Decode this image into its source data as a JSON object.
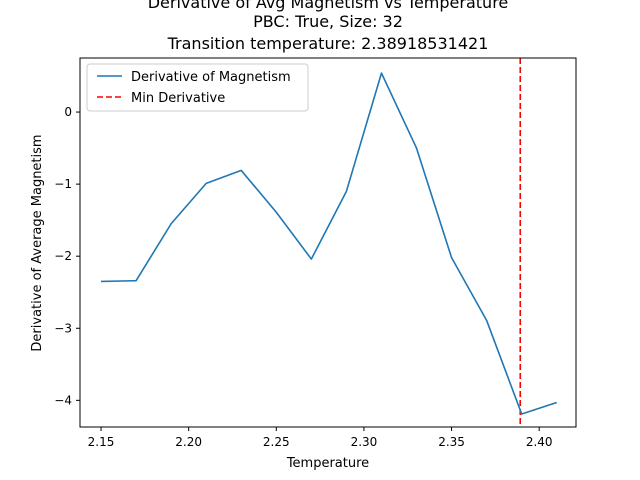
{
  "chart_data": {
    "type": "line",
    "title_lines": [
      "Derivative of Avg Magnetism vs Temperature",
      "PBC: True, Size: 32",
      "Transition temperature: 2.38918531421"
    ],
    "xlabel": "Temperature",
    "ylabel": "Derivative of Average Magnetism",
    "xlim": [
      2.138,
      2.421
    ],
    "ylim": [
      -4.37,
      0.75
    ],
    "xticks": [
      2.15,
      2.2,
      2.25,
      2.3,
      2.35,
      2.4
    ],
    "xtick_labels": [
      "2.15",
      "2.20",
      "2.25",
      "2.30",
      "2.35",
      "2.40"
    ],
    "yticks": [
      0,
      -1,
      -2,
      -3,
      -4
    ],
    "ytick_labels": [
      "0",
      "−1",
      "−2",
      "−3",
      "−4"
    ],
    "grid": false,
    "legend_position": "upper-left",
    "series": [
      {
        "name": "Derivative of Magnetism",
        "color": "#1f77b4",
        "style": "solid",
        "x": [
          2.15,
          2.17,
          2.19,
          2.21,
          2.23,
          2.25,
          2.27,
          2.29,
          2.31,
          2.33,
          2.35,
          2.37,
          2.39,
          2.41
        ],
        "y": [
          -2.35,
          -2.34,
          -1.55,
          -0.99,
          -0.81,
          -1.39,
          -2.04,
          -1.1,
          0.54,
          -0.5,
          -2.02,
          -2.89,
          -4.19,
          -4.03
        ]
      }
    ],
    "vline": {
      "name": "Min Derivative",
      "x": 2.38918531421,
      "color": "#ff0000",
      "style": "dashed"
    }
  }
}
